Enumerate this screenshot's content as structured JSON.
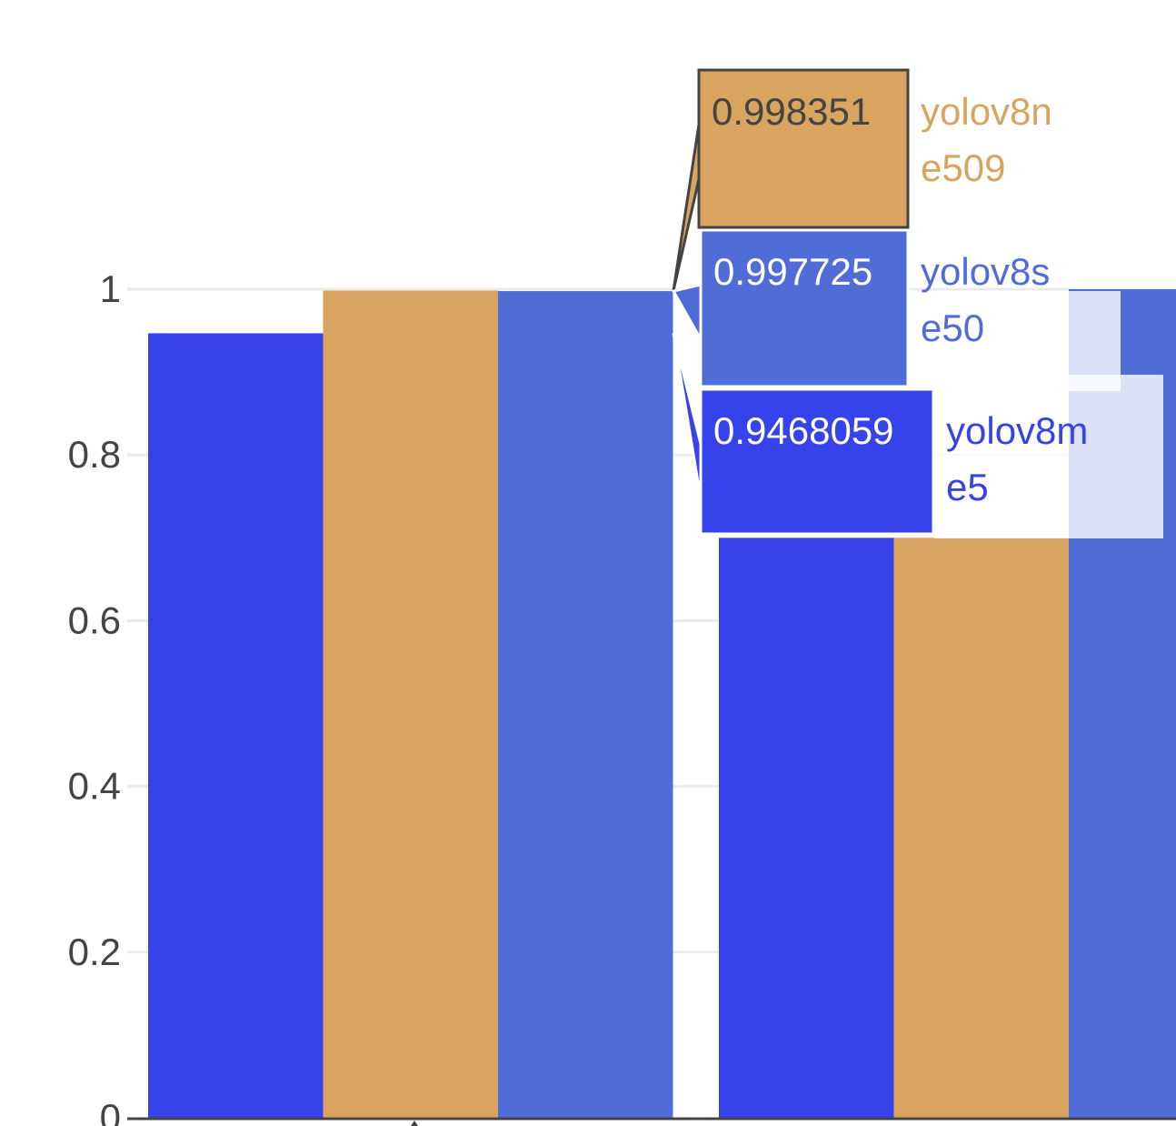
{
  "chart_data": {
    "type": "bar",
    "ylim": [
      0,
      1.25
    ],
    "y_ticks": [
      {
        "value": 0,
        "label": "0"
      },
      {
        "value": 0.2,
        "label": "0.2"
      },
      {
        "value": 0.4,
        "label": "0.4"
      },
      {
        "value": 0.6,
        "label": "0.6"
      },
      {
        "value": 0.8,
        "label": "0.8"
      },
      {
        "value": 1,
        "label": "1"
      }
    ],
    "grid": true,
    "series": [
      {
        "key": "yolov8m_e5",
        "color": "#3643EA",
        "values": [
          0.9468059,
          0.7
        ]
      },
      {
        "key": "yolov8n_e509",
        "color": "#D9A45F",
        "values": [
          0.998351,
          0.7
        ]
      },
      {
        "key": "yolov8s_e50",
        "color": "#506CD7",
        "values": [
          0.997725,
          1.0
        ]
      }
    ],
    "hover": {
      "group_index": 0,
      "labels": [
        {
          "value_text": "0.998351",
          "name_lines": [
            "yolov8n",
            "e509"
          ],
          "series": 1
        },
        {
          "value_text": "0.997725",
          "name_lines": [
            "yolov8s",
            "e50"
          ],
          "series": 2
        },
        {
          "value_text": "0.9468059",
          "name_lines": [
            "yolov8m",
            "e5"
          ],
          "series": 0
        }
      ]
    }
  },
  "colors": {
    "grid": "#ebebeb",
    "tick_text": "#444444",
    "axis_line": "#444444",
    "hover_border": "#444444"
  }
}
